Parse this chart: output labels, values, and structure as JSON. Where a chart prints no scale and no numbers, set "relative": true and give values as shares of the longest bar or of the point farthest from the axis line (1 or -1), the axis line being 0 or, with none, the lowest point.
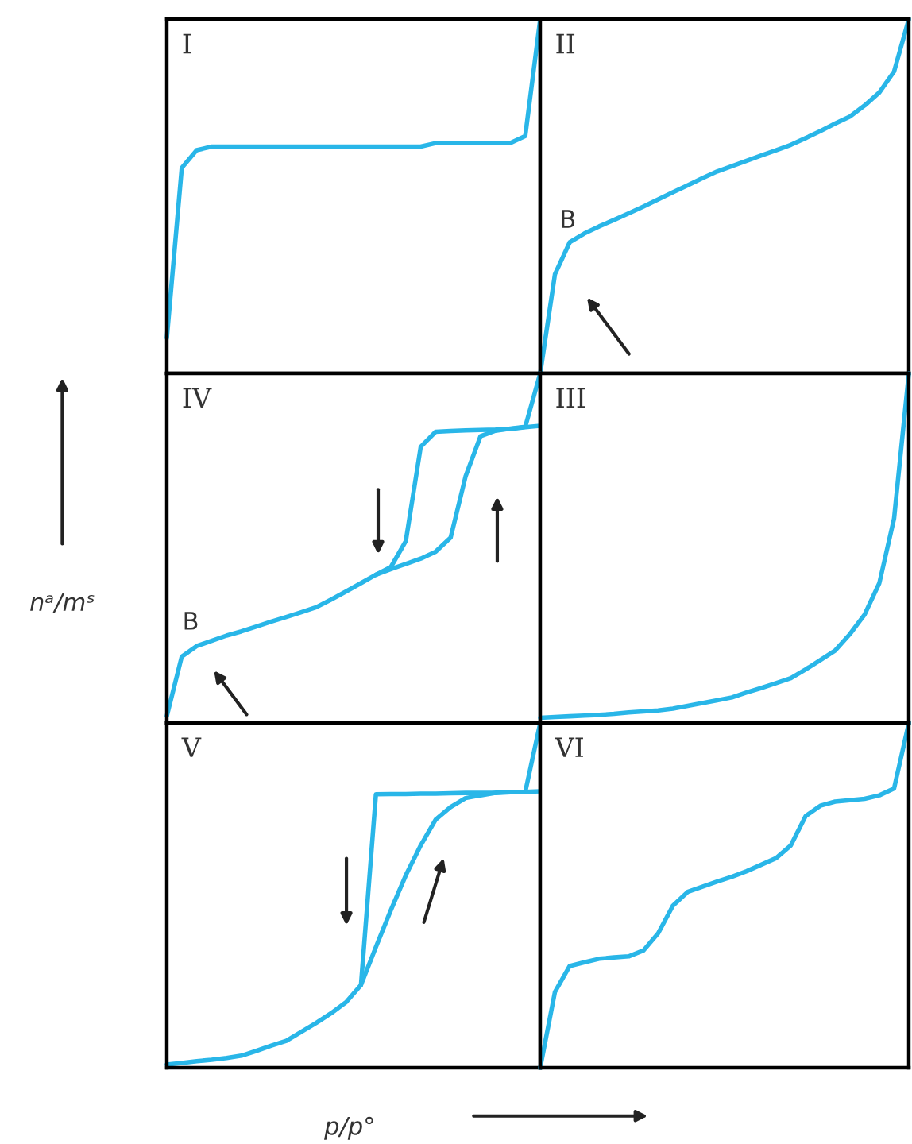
{
  "chart_data": [
    {
      "type": "line",
      "relative": true,
      "title": "I",
      "categories": [
        null,
        null,
        null,
        null,
        null,
        null,
        null,
        null,
        null,
        null,
        null,
        null,
        null,
        null,
        null,
        null,
        null,
        null,
        null,
        null,
        null,
        null,
        null,
        null,
        null,
        null
      ],
      "series": [
        {
          "color": "#29b6e8",
          "values": [
            0.1,
            0.58,
            0.63,
            0.64,
            0.64,
            0.64,
            0.64,
            0.64,
            0.64,
            0.64,
            0.64,
            0.64,
            0.64,
            0.64,
            0.64,
            0.64,
            0.64,
            0.64,
            0.65,
            0.65,
            0.65,
            0.65,
            0.65,
            0.65,
            0.67,
            1.0
          ]
        }
      ]
    },
    {
      "type": "line",
      "relative": true,
      "title": "II",
      "annotations": [
        "B"
      ],
      "categories": [
        null,
        null,
        null,
        null,
        null,
        null,
        null,
        null,
        null,
        null,
        null,
        null,
        null,
        null,
        null,
        null,
        null,
        null,
        null,
        null,
        null,
        null,
        null,
        null,
        null,
        null
      ],
      "series": [
        {
          "color": "#29b6e8",
          "values": [
            0.0,
            0.28,
            0.37,
            0.395,
            0.415,
            0.433,
            0.452,
            0.471,
            0.491,
            0.511,
            0.531,
            0.551,
            0.57,
            0.585,
            0.6,
            0.615,
            0.63,
            0.645,
            0.664,
            0.684,
            0.705,
            0.725,
            0.756,
            0.793,
            0.852,
            1.0
          ]
        }
      ]
    },
    {
      "type": "line",
      "relative": true,
      "title": "IV",
      "ylabel": "nᵃ/mˢ",
      "annotations": [
        "B"
      ],
      "categories": [
        null,
        null,
        null,
        null,
        null,
        null,
        null,
        null,
        null,
        null,
        null,
        null,
        null,
        null,
        null,
        null,
        null,
        null,
        null,
        null,
        null,
        null,
        null,
        null,
        null,
        null
      ],
      "series": [
        {
          "color": "#29b6e8",
          "values": [
            0.02,
            0.19,
            0.22,
            0.235,
            0.25,
            0.262,
            0.276,
            0.29,
            0.303,
            0.317,
            0.331,
            0.353,
            0.376,
            0.4,
            0.424,
            0.44,
            0.455,
            0.47,
            0.49,
            0.53,
            0.705,
            0.82,
            0.836,
            0.842,
            0.847,
            1.0
          ]
        },
        {
          "color": "#29b6e8",
          "values": [
            null,
            null,
            null,
            null,
            null,
            null,
            null,
            null,
            null,
            null,
            null,
            null,
            null,
            null,
            0.424,
            0.446,
            0.52,
            0.79,
            0.833,
            0.835,
            0.837,
            0.838,
            0.839,
            0.841,
            0.846,
            0.85
          ]
        }
      ]
    },
    {
      "type": "line",
      "relative": true,
      "title": "III",
      "categories": [
        null,
        null,
        null,
        null,
        null,
        null,
        null,
        null,
        null,
        null,
        null,
        null,
        null,
        null,
        null,
        null,
        null,
        null,
        null,
        null,
        null,
        null,
        null,
        null,
        null,
        null
      ],
      "series": [
        {
          "color": "#29b6e8",
          "values": [
            0.015,
            0.017,
            0.019,
            0.021,
            0.023,
            0.026,
            0.03,
            0.033,
            0.036,
            0.041,
            0.049,
            0.057,
            0.065,
            0.073,
            0.087,
            0.1,
            0.114,
            0.128,
            0.153,
            0.18,
            0.207,
            0.254,
            0.31,
            0.4,
            0.585,
            1.0
          ]
        }
      ]
    },
    {
      "type": "line",
      "relative": true,
      "title": "V",
      "xlabel": "p/p°",
      "categories": [
        null,
        null,
        null,
        null,
        null,
        null,
        null,
        null,
        null,
        null,
        null,
        null,
        null,
        null,
        null,
        null,
        null,
        null,
        null,
        null,
        null,
        null,
        null,
        null,
        null,
        null
      ],
      "series": [
        {
          "color": "#29b6e8",
          "values": [
            0.009,
            0.014,
            0.019,
            0.023,
            0.028,
            0.035,
            0.049,
            0.064,
            0.078,
            0.104,
            0.13,
            0.158,
            0.19,
            0.24,
            0.35,
            0.457,
            0.558,
            0.645,
            0.72,
            0.756,
            0.782,
            0.79,
            0.797,
            0.799,
            0.8,
            1.0
          ]
        },
        {
          "color": "#29b6e8",
          "values": [
            null,
            null,
            null,
            null,
            null,
            null,
            null,
            null,
            null,
            null,
            null,
            null,
            null,
            0.24,
            0.793,
            0.794,
            0.794,
            0.795,
            0.795,
            0.796,
            0.797,
            0.797,
            0.798,
            0.8,
            0.8,
            0.802
          ]
        }
      ]
    },
    {
      "type": "line",
      "relative": true,
      "title": "VI",
      "categories": [
        null,
        null,
        null,
        null,
        null,
        null,
        null,
        null,
        null,
        null,
        null,
        null,
        null,
        null,
        null,
        null,
        null,
        null,
        null,
        null,
        null,
        null,
        null,
        null,
        null,
        null
      ],
      "series": [
        {
          "color": "#29b6e8",
          "values": [
            0.0,
            0.22,
            0.295,
            0.306,
            0.316,
            0.32,
            0.323,
            0.34,
            0.39,
            0.47,
            0.51,
            0.525,
            0.54,
            0.554,
            0.57,
            0.589,
            0.608,
            0.645,
            0.73,
            0.76,
            0.772,
            0.776,
            0.78,
            0.79,
            0.81,
            1.0
          ]
        }
      ]
    }
  ]
}
